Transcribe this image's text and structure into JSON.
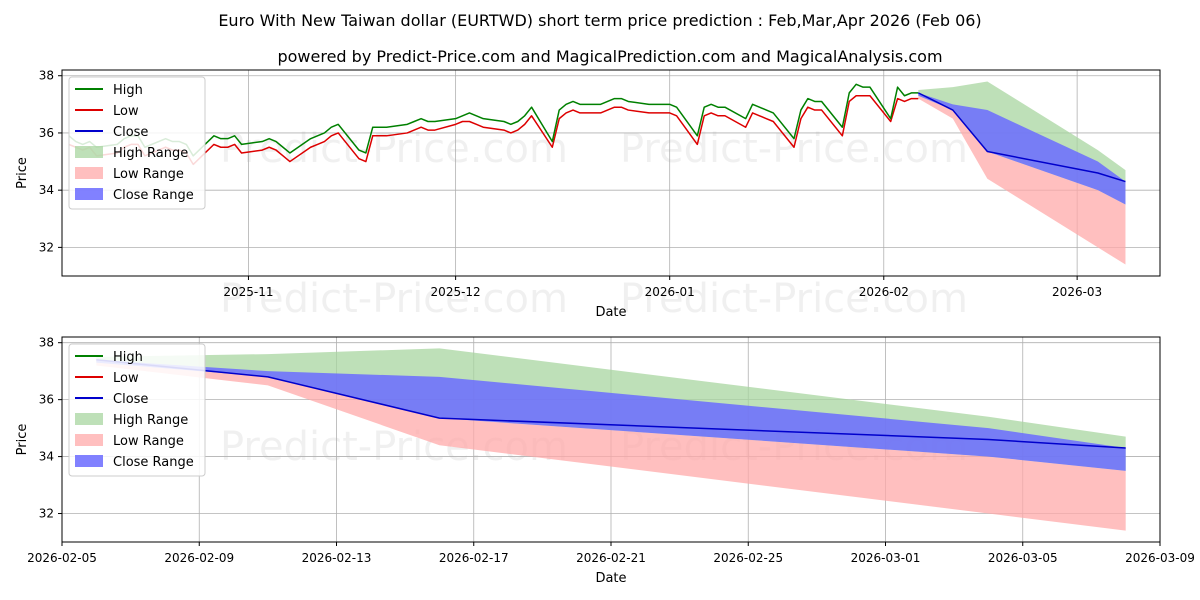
{
  "title": "Euro With New Taiwan dollar (EURTWD) short term price prediction : Feb,Mar,Apr 2026 (Feb 06)",
  "subtitle": "powered by Predict-Price.com and MagicalPrediction.com and MagicalAnalysis.com",
  "watermark": "Predict-Price.com",
  "colors": {
    "high": "#008000",
    "low": "#dd0000",
    "close": "#0000cc",
    "high_range": "#a8d5a0",
    "low_range": "#ffaaaa",
    "close_range": "#6b6bff"
  },
  "chart_data": [
    {
      "type": "line",
      "name": "history-and-forecast",
      "xlabel": "Date",
      "ylabel": "Price",
      "ylim": [
        31.0,
        38.2
      ],
      "xlim": [
        "2025-10-05",
        "2026-03-13"
      ],
      "x_ticks": [
        "2025-11-01",
        "2025-12-01",
        "2026-01-01",
        "2026-02-01",
        "2026-03-01"
      ],
      "x_tick_labels": [
        "2025-11",
        "2025-12",
        "2026-01",
        "2026-02",
        "2026-03"
      ],
      "y_ticks": [
        32,
        34,
        36,
        38
      ],
      "y_tick_labels": [
        "32",
        "34",
        "36",
        "38"
      ],
      "legend": [
        "High",
        "Low",
        "Close",
        "High Range",
        "Low Range",
        "Close Range"
      ],
      "legend_position": "top-left",
      "history": {
        "dates": [
          "2025-10-06",
          "2025-10-07",
          "2025-10-08",
          "2025-10-09",
          "2025-10-10",
          "2025-10-13",
          "2025-10-14",
          "2025-10-15",
          "2025-10-16",
          "2025-10-17",
          "2025-10-20",
          "2025-10-21",
          "2025-10-22",
          "2025-10-23",
          "2025-10-24",
          "2025-10-27",
          "2025-10-28",
          "2025-10-29",
          "2025-10-30",
          "2025-10-31",
          "2025-11-03",
          "2025-11-04",
          "2025-11-05",
          "2025-11-06",
          "2025-11-07",
          "2025-11-10",
          "2025-11-11",
          "2025-11-12",
          "2025-11-13",
          "2025-11-14",
          "2025-11-17",
          "2025-11-18",
          "2025-11-19",
          "2025-11-20",
          "2025-11-21",
          "2025-11-24",
          "2025-11-25",
          "2025-11-26",
          "2025-11-27",
          "2025-11-28",
          "2025-12-01",
          "2025-12-02",
          "2025-12-03",
          "2025-12-04",
          "2025-12-05",
          "2025-12-08",
          "2025-12-09",
          "2025-12-10",
          "2025-12-11",
          "2025-12-12",
          "2025-12-15",
          "2025-12-16",
          "2025-12-17",
          "2025-12-18",
          "2025-12-19",
          "2025-12-22",
          "2025-12-23",
          "2025-12-24",
          "2025-12-25",
          "2025-12-26",
          "2025-12-29",
          "2025-12-30",
          "2025-12-31",
          "2026-01-01",
          "2026-01-02",
          "2026-01-05",
          "2026-01-06",
          "2026-01-07",
          "2026-01-08",
          "2026-01-09",
          "2026-01-12",
          "2026-01-13",
          "2026-01-14",
          "2026-01-15",
          "2026-01-16",
          "2026-01-19",
          "2026-01-20",
          "2026-01-21",
          "2026-01-22",
          "2026-01-23",
          "2026-01-26",
          "2026-01-27",
          "2026-01-28",
          "2026-01-29",
          "2026-01-30",
          "2026-02-02",
          "2026-02-03",
          "2026-02-04",
          "2026-02-05",
          "2026-02-06"
        ],
        "high": [
          35.9,
          35.7,
          35.6,
          35.7,
          35.5,
          35.6,
          35.8,
          35.9,
          35.9,
          35.5,
          35.8,
          35.7,
          35.7,
          35.6,
          35.2,
          35.9,
          35.8,
          35.8,
          35.9,
          35.6,
          35.7,
          35.8,
          35.7,
          35.5,
          35.3,
          35.8,
          35.9,
          36.0,
          36.2,
          36.3,
          35.4,
          35.3,
          36.2,
          36.2,
          36.2,
          36.3,
          36.4,
          36.5,
          36.4,
          36.4,
          36.5,
          36.6,
          36.7,
          36.6,
          36.5,
          36.4,
          36.3,
          36.4,
          36.6,
          36.9,
          35.7,
          36.8,
          37.0,
          37.1,
          37.0,
          37.0,
          37.1,
          37.2,
          37.2,
          37.1,
          37.0,
          37.0,
          37.0,
          37.0,
          36.9,
          35.9,
          36.9,
          37.0,
          36.9,
          36.9,
          36.5,
          37.0,
          36.9,
          36.8,
          36.7,
          35.8,
          36.8,
          37.2,
          37.1,
          37.1,
          36.2,
          37.4,
          37.7,
          37.6,
          37.6,
          36.5,
          37.6,
          37.3,
          37.4,
          37.4
        ],
        "low": [
          35.6,
          35.5,
          35.4,
          35.5,
          35.2,
          35.3,
          35.5,
          35.6,
          35.6,
          35.2,
          35.5,
          35.4,
          35.4,
          35.3,
          34.9,
          35.6,
          35.5,
          35.5,
          35.6,
          35.3,
          35.4,
          35.5,
          35.4,
          35.2,
          35.0,
          35.5,
          35.6,
          35.7,
          35.9,
          36.0,
          35.1,
          35.0,
          35.9,
          35.9,
          35.9,
          36.0,
          36.1,
          36.2,
          36.1,
          36.1,
          36.3,
          36.4,
          36.4,
          36.3,
          36.2,
          36.1,
          36.0,
          36.1,
          36.3,
          36.6,
          35.5,
          36.5,
          36.7,
          36.8,
          36.7,
          36.7,
          36.8,
          36.9,
          36.9,
          36.8,
          36.7,
          36.7,
          36.7,
          36.7,
          36.6,
          35.6,
          36.6,
          36.7,
          36.6,
          36.6,
          36.2,
          36.7,
          36.6,
          36.5,
          36.4,
          35.5,
          36.5,
          36.9,
          36.8,
          36.8,
          35.9,
          37.1,
          37.3,
          37.3,
          37.3,
          36.4,
          37.2,
          37.1,
          37.2,
          37.2
        ]
      },
      "forecast": {
        "dates": [
          "2026-02-06",
          "2026-02-11",
          "2026-02-16",
          "2026-03-04",
          "2026-03-08"
        ],
        "close": [
          37.4,
          36.8,
          35.35,
          34.6,
          34.3
        ],
        "high_range_upper": [
          37.5,
          37.6,
          37.8,
          35.4,
          34.7
        ],
        "close_range_upper": [
          37.4,
          37.0,
          36.8,
          35.0,
          34.3
        ],
        "close_range_lower": [
          37.3,
          36.8,
          35.35,
          34.0,
          33.5
        ],
        "low_range_lower": [
          37.2,
          36.5,
          34.4,
          32.0,
          31.4
        ]
      }
    },
    {
      "type": "line",
      "name": "forecast-zoom",
      "xlabel": "Date",
      "ylabel": "Price",
      "ylim": [
        31.0,
        38.2
      ],
      "xlim": [
        "2026-02-05",
        "2026-03-09"
      ],
      "x_ticks": [
        "2026-02-05",
        "2026-02-09",
        "2026-02-13",
        "2026-02-17",
        "2026-02-21",
        "2026-02-25",
        "2026-03-01",
        "2026-03-05",
        "2026-03-09"
      ],
      "x_tick_labels": [
        "2026-02-05",
        "2026-02-09",
        "2026-02-13",
        "2026-02-17",
        "2026-02-21",
        "2026-02-25",
        "2026-03-01",
        "2026-03-05",
        "2026-03-09"
      ],
      "y_ticks": [
        32,
        34,
        36,
        38
      ],
      "y_tick_labels": [
        "32",
        "34",
        "36",
        "38"
      ],
      "legend": [
        "High",
        "Low",
        "Close",
        "High Range",
        "Low Range",
        "Close Range"
      ],
      "legend_position": "top-left",
      "forecast": {
        "dates": [
          "2026-02-06",
          "2026-02-11",
          "2026-02-16",
          "2026-03-04",
          "2026-03-08"
        ],
        "close": [
          37.4,
          36.8,
          35.35,
          34.6,
          34.3
        ],
        "high_range_upper": [
          37.5,
          37.6,
          37.8,
          35.4,
          34.7
        ],
        "close_range_upper": [
          37.4,
          37.0,
          36.8,
          35.0,
          34.3
        ],
        "close_range_lower": [
          37.3,
          36.8,
          35.35,
          34.0,
          33.5
        ],
        "low_range_lower": [
          37.2,
          36.5,
          34.4,
          32.0,
          31.4
        ]
      }
    }
  ]
}
